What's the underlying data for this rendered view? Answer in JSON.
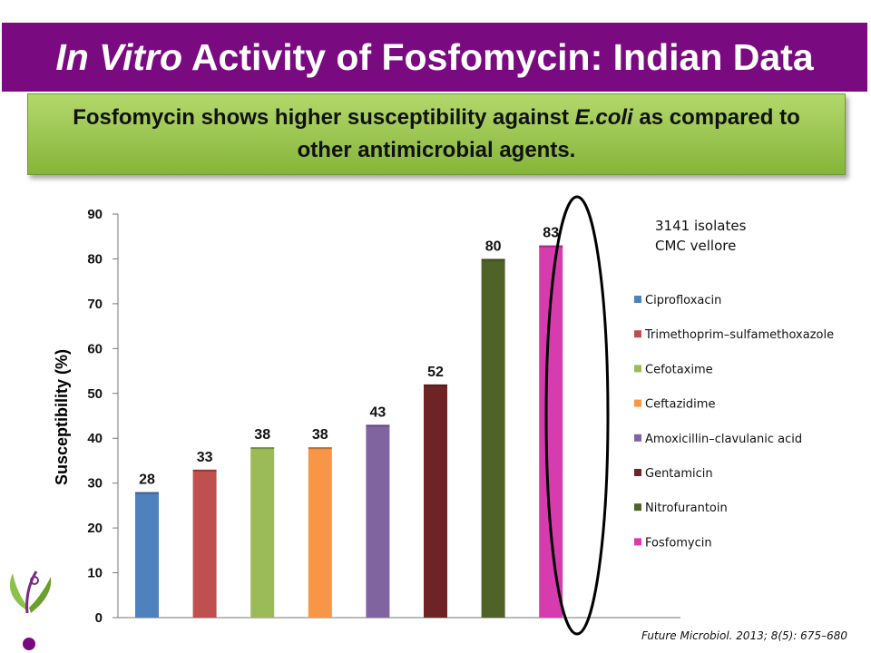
{
  "title": {
    "italic_part": "In Vitro",
    "rest": " Activity of Fosfomycin: Indian Data"
  },
  "subtitle": {
    "part1": "Fosfomycin shows higher susceptibility against ",
    "italic_part": "E.coli",
    "part2": " as compared to other antimicrobial agents."
  },
  "annotation": {
    "line1": "3141 isolates",
    "line2": "CMC vellore"
  },
  "citation": "Future Microbiol. 2013; 8(5): 675–680",
  "chart_data": {
    "type": "bar",
    "ylabel": "Susceptibility (%)",
    "ylim": [
      0,
      90
    ],
    "yticks": [
      0,
      10,
      20,
      30,
      40,
      50,
      60,
      70,
      80,
      90
    ],
    "legend_position": "right",
    "highlighted": "Fosfomycin",
    "series": [
      {
        "name": "Ciprofloxacin",
        "value": 28,
        "color": "#4f81bd"
      },
      {
        "name": "Trimethoprim–sulfamethoxazole",
        "value": 33,
        "color": "#c0504d"
      },
      {
        "name": "Cefotaxime",
        "value": 38,
        "color": "#9bbb59"
      },
      {
        "name": "Ceftazidime",
        "value": 38,
        "color": "#f79646"
      },
      {
        "name": "Amoxicillin–clavulanic acid",
        "value": 43,
        "color": "#8064a2"
      },
      {
        "name": "Gentamicin",
        "value": 52,
        "color": "#6e2424"
      },
      {
        "name": "Nitrofurantoin",
        "value": 80,
        "color": "#4f6228"
      },
      {
        "name": "Fosfomycin",
        "value": 83,
        "color": "#d63cae"
      }
    ]
  }
}
